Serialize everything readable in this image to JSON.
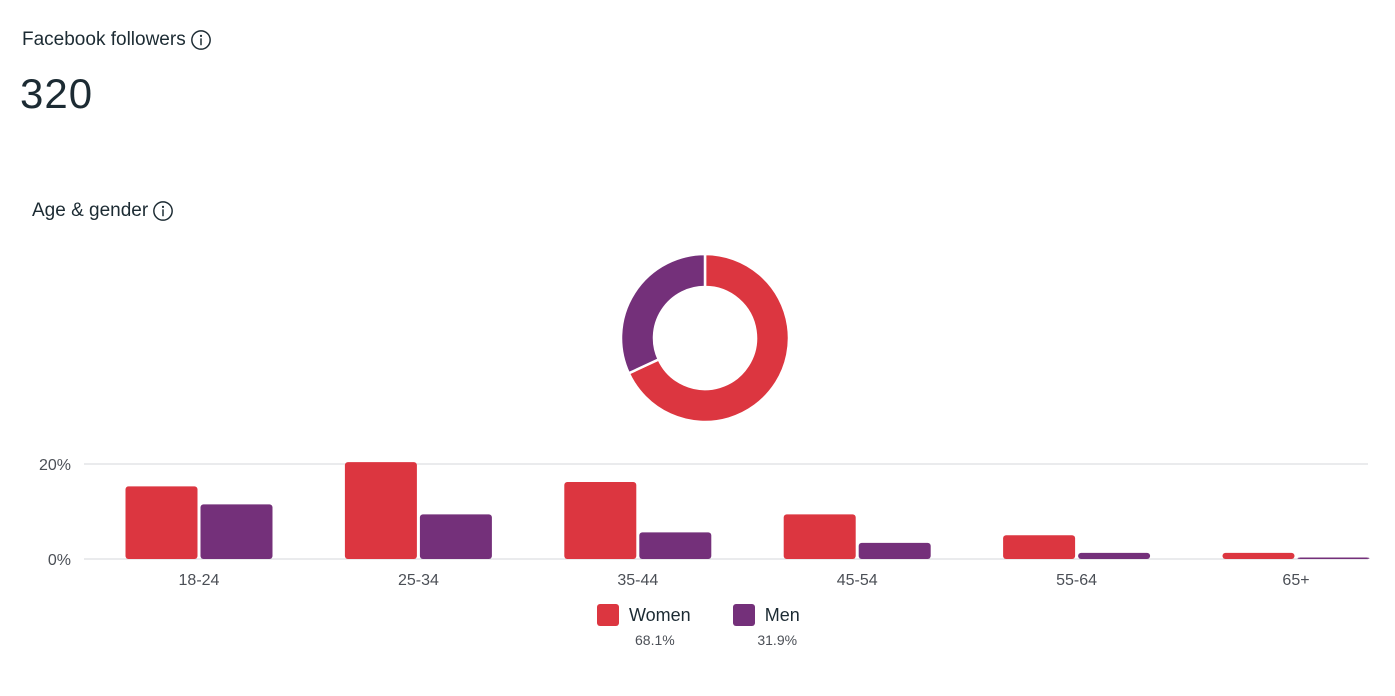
{
  "header": {
    "title": "Facebook followers",
    "total": "320",
    "info_icon": "info-icon"
  },
  "section": {
    "title": "Age & gender",
    "info_icon": "info-icon"
  },
  "colors": {
    "women": "#dc3640",
    "men": "#74307a",
    "gridline": "#dddfe2"
  },
  "chart_data": [
    {
      "type": "pie",
      "variant": "donut",
      "labels": [
        "Women",
        "Men"
      ],
      "values": [
        68.1,
        31.9
      ]
    },
    {
      "type": "bar",
      "categories": [
        "18-24",
        "25-34",
        "35-44",
        "45-54",
        "55-64",
        "65+"
      ],
      "series": [
        {
          "name": "Women",
          "values": [
            15.3,
            20.4,
            16.2,
            9.4,
            5.0,
            1.3
          ]
        },
        {
          "name": "Men",
          "values": [
            11.5,
            9.4,
            5.6,
            3.4,
            1.3,
            0.3
          ]
        }
      ],
      "y_ticks": [
        "0%",
        "20%"
      ],
      "ylim": [
        0,
        20
      ],
      "grid": true,
      "legend": "bottom-center"
    }
  ],
  "legend": {
    "items": [
      {
        "label": "Women",
        "pct": "68.1%"
      },
      {
        "label": "Men",
        "pct": "31.9%"
      }
    ]
  }
}
